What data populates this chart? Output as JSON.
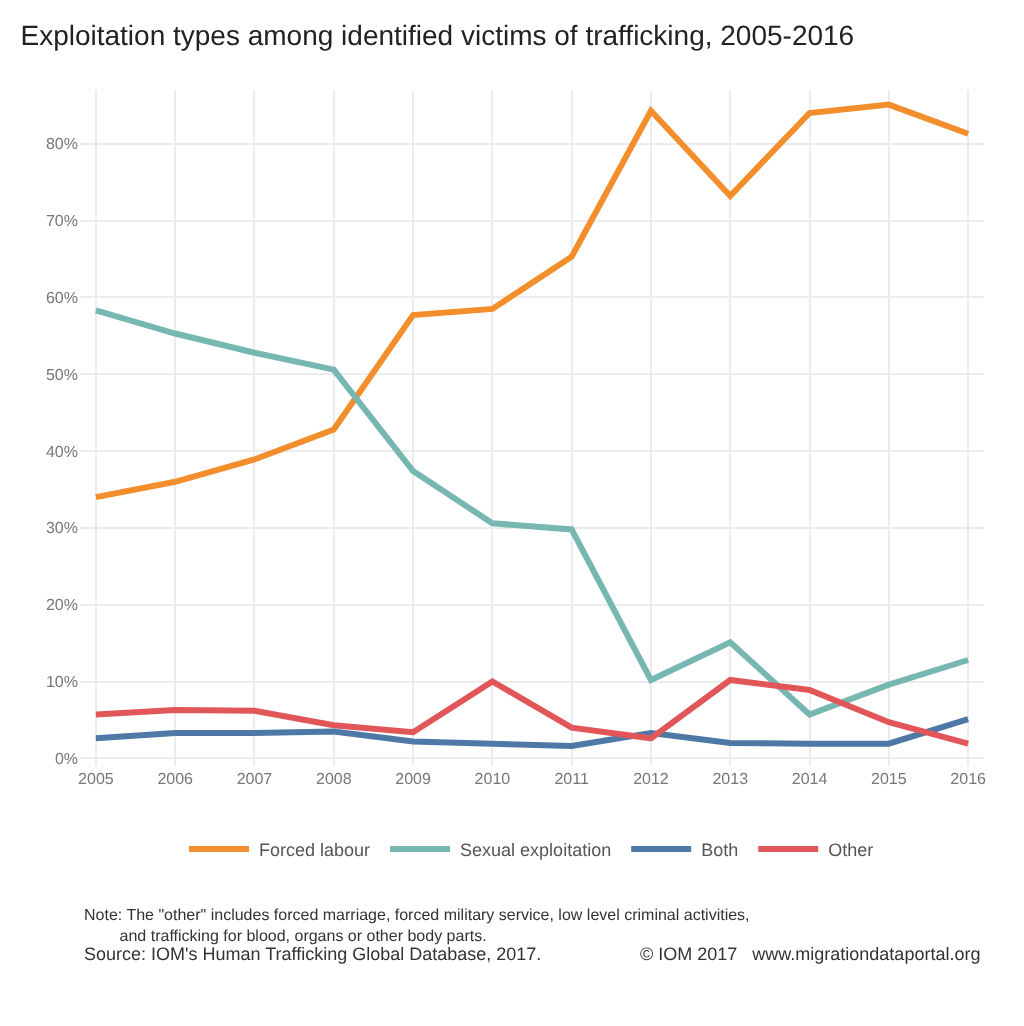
{
  "chart_data": {
    "type": "line",
    "title": "Exploitation types among identified victims of trafficking, 2005-2016",
    "x": [
      2005,
      2006,
      2007,
      2008,
      2009,
      2010,
      2011,
      2012,
      2013,
      2014,
      2015,
      2016
    ],
    "series": [
      {
        "name": "Forced labour",
        "color": "#f28e2b",
        "values": [
          34.0,
          36.0,
          38.9,
          42.8,
          57.7,
          58.5,
          65.3,
          84.3,
          73.2,
          84.0,
          85.1,
          81.3
        ]
      },
      {
        "name": "Sexual exploitation",
        "color": "#76b7b2",
        "values": [
          58.3,
          55.3,
          52.8,
          50.6,
          37.4,
          30.6,
          29.8,
          10.2,
          15.1,
          5.7,
          9.6,
          12.8
        ]
      },
      {
        "name": "Both",
        "color": "#4e79a7",
        "values": [
          2.6,
          3.3,
          3.3,
          3.5,
          2.2,
          1.9,
          1.6,
          3.3,
          2.0,
          1.9,
          1.9,
          5.1
        ]
      },
      {
        "name": "Other",
        "color": "#e15759",
        "values": [
          5.7,
          6.3,
          6.2,
          4.3,
          3.4,
          10.0,
          4.0,
          2.6,
          10.2,
          8.9,
          4.7,
          1.9
        ]
      }
    ],
    "xlim": [
      2004.8,
      2016.2
    ],
    "xticks": [
      2005,
      2006,
      2007,
      2008,
      2009,
      2010,
      2011,
      2012,
      2013,
      2014,
      2015,
      2016
    ],
    "ylim": [
      -1,
      87
    ],
    "yticks": [
      {
        "value": 0,
        "label": "0%"
      },
      {
        "value": 10,
        "label": "10%"
      },
      {
        "value": 20,
        "label": "20%"
      },
      {
        "value": 30,
        "label": "30%"
      },
      {
        "value": 40,
        "label": "40%"
      },
      {
        "value": 50,
        "label": "50%"
      },
      {
        "value": 60,
        "label": "60%"
      },
      {
        "value": 70,
        "label": "70%"
      },
      {
        "value": 80,
        "label": "80%"
      }
    ],
    "grid": true,
    "legend": "bottom",
    "marker": "none",
    "line_style": "solid",
    "annotations": [
      "Note: The \"other\" includes forced marriage, forced military service, low level criminal activities,\n        and trafficking for blood, organs or other body parts.",
      "Source: IOM's Human Trafficking Global Database, 2017.",
      "© IOM 2017   www.migrationdataportal.org"
    ]
  }
}
